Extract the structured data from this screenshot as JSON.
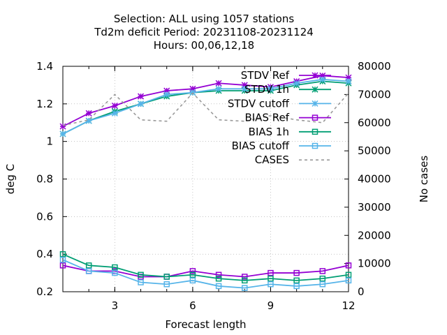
{
  "chart_data": {
    "type": "line",
    "title_lines": [
      "Selection: ALL using  1057 stations",
      "Td2m deficit   Period: 20231108-20231124",
      "Hours:  00,06,12,18"
    ],
    "xlabel": "Forecast length",
    "ylabel": "deg C",
    "y2label": "No cases",
    "xlim": [
      1,
      12
    ],
    "ylim": [
      0.2,
      1.4
    ],
    "y2lim": [
      0,
      80000
    ],
    "x_ticks": [
      3,
      6,
      9,
      12
    ],
    "y_ticks": [
      0.2,
      0.4,
      0.6,
      0.8,
      1,
      1.2,
      1.4
    ],
    "y_tick_labels": [
      "0.2",
      "0.4",
      "0.6",
      "0.8",
      "1",
      "1.2",
      "1.4"
    ],
    "y2_ticks": [
      0,
      10000,
      20000,
      30000,
      40000,
      50000,
      60000,
      70000,
      80000
    ],
    "grid": true,
    "legend_position": "top-right",
    "x": [
      1,
      2,
      3,
      4,
      5,
      6,
      7,
      8,
      9,
      10,
      11,
      12
    ],
    "series": [
      {
        "name": "STDV Ref",
        "color": "#9400d3",
        "marker": "star",
        "dash": "solid",
        "axis": "y1",
        "values": [
          1.08,
          1.15,
          1.19,
          1.24,
          1.27,
          1.28,
          1.31,
          1.3,
          1.29,
          1.32,
          1.35,
          1.34
        ]
      },
      {
        "name": "STDV 1h",
        "color": "#009e73",
        "marker": "star",
        "dash": "solid",
        "axis": "y1",
        "values": [
          1.04,
          1.11,
          1.16,
          1.2,
          1.24,
          1.26,
          1.27,
          1.27,
          1.27,
          1.3,
          1.32,
          1.31
        ]
      },
      {
        "name": "STDV cutoff",
        "color": "#56b4e9",
        "marker": "star",
        "dash": "solid",
        "axis": "y1",
        "values": [
          1.04,
          1.11,
          1.15,
          1.2,
          1.25,
          1.26,
          1.28,
          1.28,
          1.28,
          1.31,
          1.33,
          1.32
        ]
      },
      {
        "name": "BIAS Ref",
        "color": "#9400d3",
        "marker": "square",
        "dash": "solid",
        "axis": "y1",
        "values": [
          0.34,
          0.31,
          0.31,
          0.28,
          0.28,
          0.31,
          0.29,
          0.28,
          0.3,
          0.3,
          0.31,
          0.34
        ]
      },
      {
        "name": "BIAS 1h",
        "color": "#009e73",
        "marker": "square",
        "dash": "solid",
        "axis": "y1",
        "values": [
          0.4,
          0.34,
          0.33,
          0.29,
          0.28,
          0.29,
          0.27,
          0.26,
          0.27,
          0.26,
          0.27,
          0.29
        ]
      },
      {
        "name": "BIAS cutoff",
        "color": "#56b4e9",
        "marker": "square",
        "dash": "solid",
        "axis": "y1",
        "values": [
          0.37,
          0.31,
          0.3,
          0.25,
          0.24,
          0.26,
          0.23,
          0.22,
          0.24,
          0.23,
          0.24,
          0.26
        ]
      },
      {
        "name": "CASES",
        "color": "#999999",
        "marker": "none",
        "dash": "dashed",
        "axis": "y2",
        "values": [
          59000,
          61000,
          70000,
          61000,
          60500,
          70500,
          61000,
          60500,
          62500,
          61000,
          60000,
          70500
        ]
      }
    ]
  }
}
